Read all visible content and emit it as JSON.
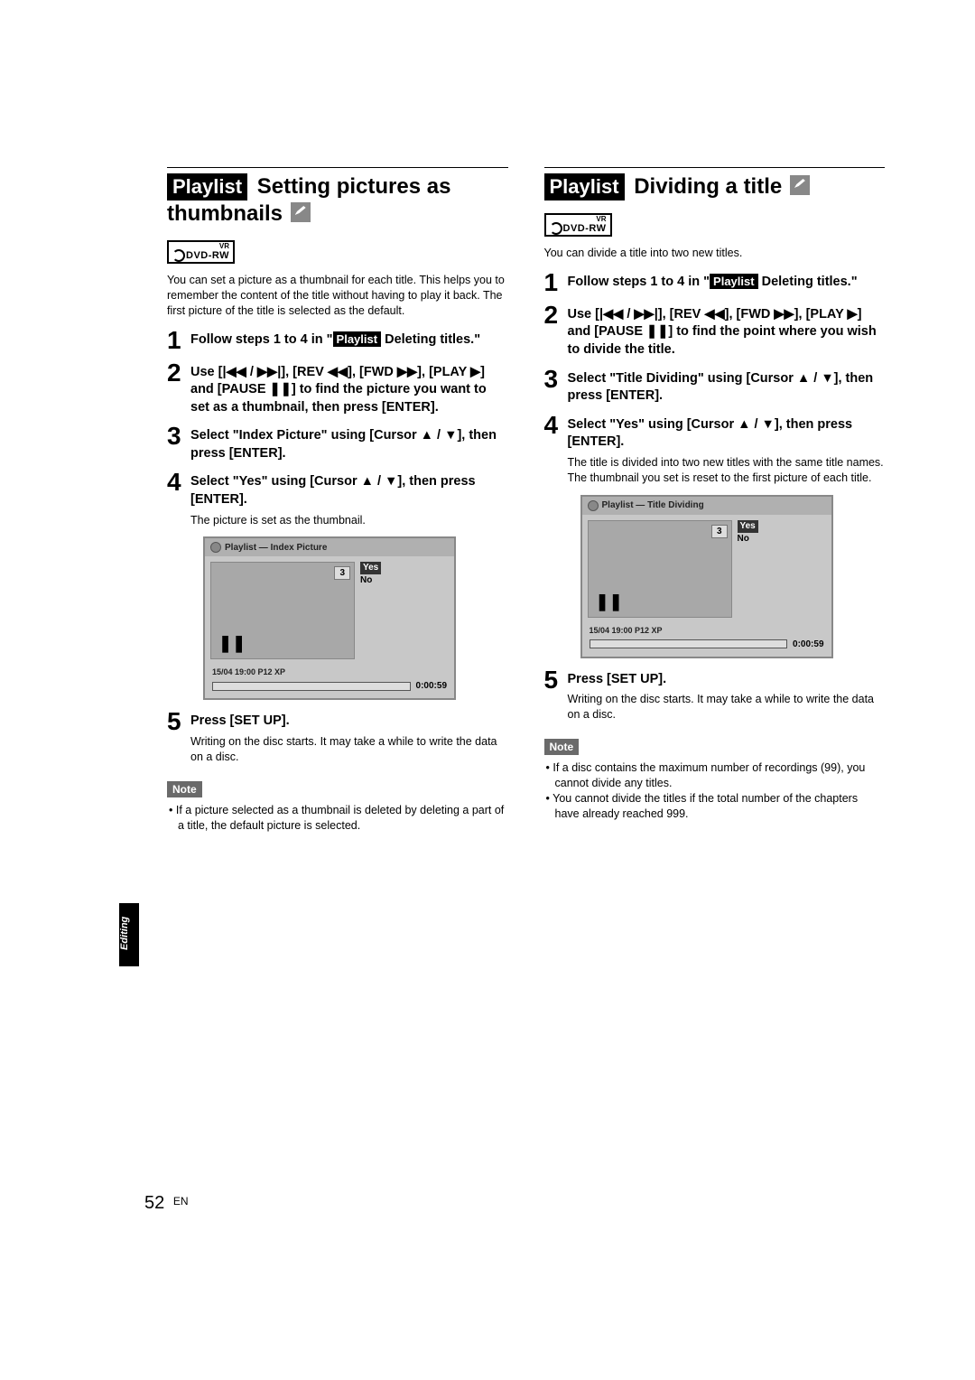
{
  "page": {
    "number": "52",
    "lang": "EN",
    "side_tab": "Editing"
  },
  "left": {
    "title_badge": "Playlist",
    "title_rest": " Setting pictures as thumbnails ",
    "disc_label": "DVD-RW",
    "disc_vr": "VR",
    "intro": "You can set a picture as a thumbnail for each title. This helps you to remember the content of the title without having to play it back. The first picture of the title is selected as the default.",
    "steps": [
      {
        "n": "1",
        "body_pre": "Follow steps 1 to 4 in \"",
        "badge": "Playlist",
        "body_post": " Deleting titles.\""
      },
      {
        "n": "2",
        "body": "Use [|◀◀ / ▶▶|], [REV ◀◀], [FWD ▶▶], [PLAY ▶] and [PAUSE ❚❚] to find the picture you want to set as a thumbnail, then press [ENTER]."
      },
      {
        "n": "3",
        "body": "Select \"Index Picture\" using [Cursor ▲ / ▼], then press [ENTER]."
      },
      {
        "n": "4",
        "body": "Select \"Yes\" using [Cursor ▲ / ▼], then press [ENTER].",
        "desc": "The picture is set as the thumbnail."
      },
      {
        "n": "5",
        "body": "Press [SET UP].",
        "desc": "Writing on the disc starts.\nIt may take a while to write the data on a disc."
      }
    ],
    "ui": {
      "titlebar": "Playlist  —  Index Picture",
      "thumb_num": "3",
      "pause": "❚❚",
      "menu_yes": "Yes",
      "menu_no": "No",
      "info": "15/04  19:00  P12  XP",
      "time": "0:00:59"
    },
    "note_label": "Note",
    "notes": [
      "If a picture selected as a thumbnail is deleted by deleting a part of a title, the default picture is selected."
    ]
  },
  "right": {
    "title_badge": "Playlist",
    "title_rest": " Dividing a title ",
    "disc_label": "DVD-RW",
    "disc_vr": "VR",
    "intro": "You can divide a title into two new titles.",
    "steps": [
      {
        "n": "1",
        "body_pre": "Follow steps 1 to 4 in \"",
        "badge": "Playlist",
        "body_post": " Deleting titles.\""
      },
      {
        "n": "2",
        "body": "Use [|◀◀ / ▶▶|], [REV ◀◀], [FWD ▶▶], [PLAY ▶] and [PAUSE ❚❚] to find the point where you wish to divide the title."
      },
      {
        "n": "3",
        "body": "Select \"Title Dividing\" using [Cursor ▲ / ▼], then press [ENTER]."
      },
      {
        "n": "4",
        "body": "Select \"Yes\" using [Cursor ▲ / ▼], then press [ENTER].",
        "desc": "The title is divided into two new titles with the same title names.\nThe thumbnail you set is reset to the first picture of each title."
      },
      {
        "n": "5",
        "body": "Press [SET UP].",
        "desc": "Writing on the disc starts.\nIt may take a while to write the data on a disc."
      }
    ],
    "ui": {
      "titlebar": "Playlist  —  Title Dividing",
      "thumb_num": "3",
      "pause": "❚❚",
      "menu_yes": "Yes",
      "menu_no": "No",
      "info": "15/04  19:00  P12  XP",
      "time": "0:00:59"
    },
    "note_label": "Note",
    "notes": [
      "If a disc contains the maximum number of recordings (99), you cannot divide any titles.",
      "You cannot divide the titles if the total number of the chapters have already reached 999."
    ]
  }
}
